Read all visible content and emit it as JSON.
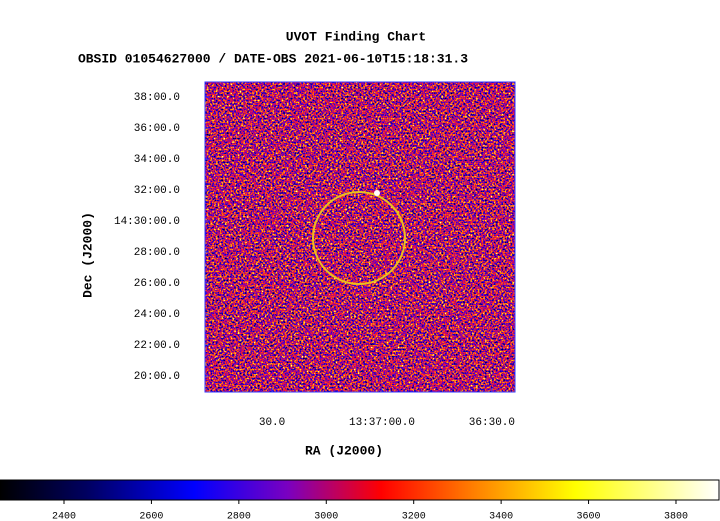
{
  "chart_data": {
    "type": "image",
    "title": "UVOT Finding Chart",
    "subtitle": "OBSID 01054627000 / DATE-OBS 2021-06-10T15:18:31.3",
    "x_label": "RA (J2000)",
    "y_label": "Dec (J2000)",
    "xlim": [
      108.3,
      23.7
    ],
    "xticks": [
      {
        "value": 90,
        "label": "30.0"
      },
      {
        "value": 60,
        "label": "13:37:00.0"
      },
      {
        "value": 30,
        "label": "36:30.0"
      }
    ],
    "ylim": [
      18.97,
      38.97
    ],
    "yticks": [
      {
        "value": 20,
        "label": "20:00.0"
      },
      {
        "value": 22,
        "label": "22:00.0"
      },
      {
        "value": 24,
        "label": "24:00.0"
      },
      {
        "value": 26,
        "label": "26:00.0"
      },
      {
        "value": 28,
        "label": "28:00.0"
      },
      {
        "value": 30,
        "label": "14:30:00.0"
      },
      {
        "value": 32,
        "label": "32:00.0"
      },
      {
        "value": 34,
        "label": "34:00.0"
      },
      {
        "value": 36,
        "label": "36:00.0"
      },
      {
        "value": 38,
        "label": "38:00.0"
      }
    ],
    "colorbar": {
      "lim": [
        2253.6,
        3900.7
      ],
      "ticks": [
        2400,
        2600,
        2800,
        3000,
        3200,
        3400,
        3600,
        3800
      ]
    }
  }
}
